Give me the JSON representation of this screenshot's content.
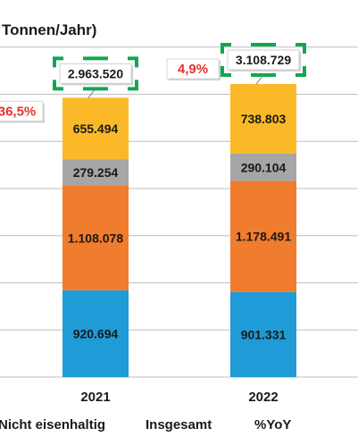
{
  "chart_data": {
    "type": "bar",
    "stacked": true,
    "title": "Tonnen/Jahr)",
    "categories": [
      "2021",
      "2022"
    ],
    "series": [
      {
        "name": "",
        "color": "#1f9bd7",
        "values": [
          920.694,
          901.331
        ],
        "labels": [
          "920.694",
          "901.331"
        ]
      },
      {
        "name": "",
        "color": "#f07c2e",
        "values": [
          1108.078,
          1178.491
        ],
        "labels": [
          "1.108.078",
          "1.178.491"
        ]
      },
      {
        "name": "",
        "color": "#a6a6a6",
        "values": [
          279.254,
          290.104
        ],
        "labels": [
          "279.254",
          "290.104"
        ]
      },
      {
        "name": "",
        "color": "#fbb927",
        "values": [
          655.494,
          738.803
        ],
        "labels": [
          "655.494",
          "738.803"
        ]
      }
    ],
    "totals": {
      "values": [
        2963.52,
        3108.729
      ],
      "labels": [
        "2.963.520",
        "3.108.729"
      ]
    },
    "yoy": {
      "labels": [
        "36,5%",
        "4,9%"
      ],
      "color": "#e8312a"
    },
    "ylim": [
      0,
      3500
    ],
    "grid": true,
    "legend_position": "bottom",
    "legend": [
      "Nicht eisenhaltig",
      "Insgesamt",
      "%YoY"
    ],
    "colors": {
      "total_box": "#12a650",
      "gridline": "#bfbfbf",
      "text": "#1a1a1a"
    }
  }
}
